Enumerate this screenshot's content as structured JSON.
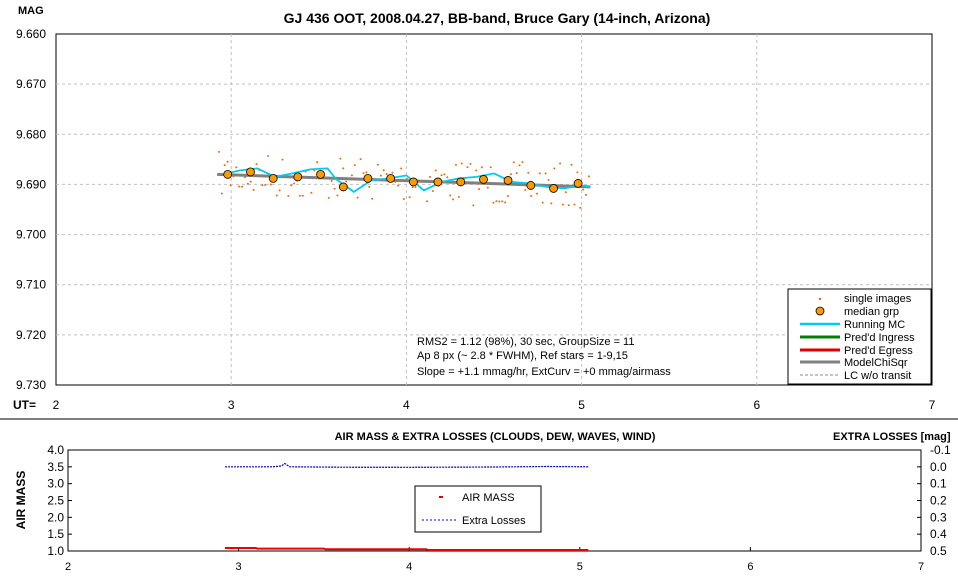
{
  "chart_data": [
    {
      "type": "scatter",
      "title": "GJ 436 OOT, 2008.04.27, BB-band, Bruce Gary (14-inch, Arizona)",
      "ylabel": "MAG",
      "xlabel": "UT=",
      "xlim": [
        2,
        7
      ],
      "ylim": [
        9.73,
        9.66
      ],
      "y_inverted": true,
      "x_ticks": [
        "2",
        "3",
        "4",
        "5",
        "6",
        "7"
      ],
      "y_ticks": [
        "9.660",
        "9.670",
        "9.680",
        "9.690",
        "9.700",
        "9.710",
        "9.720",
        "9.730"
      ],
      "grid": true,
      "legend_position": "bottom-right",
      "legend": [
        "single images",
        "median grp",
        "Running MC",
        "Pred'd Ingress",
        "Pred'd Egress",
        "ModelChiSqr",
        "LC w/o transit"
      ],
      "annotations": [
        "RMS2 = 1.12 (98%), 30 sec, GroupSize = 11",
        "Ap 8 px (~ 2.8 * FWHM), Ref stars = 1-9,15",
        "Slope = +1.1 mmag/hr, ExtCurv = +0 mmag/airmass"
      ],
      "series": [
        {
          "name": "median grp",
          "x": [
            2.98,
            3.11,
            3.24,
            3.38,
            3.51,
            3.64,
            3.78,
            3.91,
            4.04,
            4.18,
            4.31,
            4.44,
            4.58,
            4.71,
            4.84,
            4.98
          ],
          "y": [
            9.688,
            9.6875,
            9.6888,
            9.6885,
            9.688,
            9.6905,
            9.6888,
            9.6888,
            9.6895,
            9.6895,
            9.6895,
            9.689,
            9.6892,
            9.6902,
            9.6908,
            9.6898
          ]
        },
        {
          "name": "Running MC",
          "x": [
            2.95,
            3.05,
            3.15,
            3.25,
            3.35,
            3.45,
            3.55,
            3.6,
            3.7,
            3.8,
            3.9,
            4.0,
            4.1,
            4.2,
            4.3,
            4.4,
            4.5,
            4.6,
            4.7,
            4.8,
            4.9,
            5.0,
            5.05
          ],
          "y": [
            9.688,
            9.6872,
            9.6868,
            9.6885,
            9.6878,
            9.687,
            9.6868,
            9.689,
            9.6915,
            9.6892,
            9.6888,
            9.6882,
            9.6912,
            9.6895,
            9.6888,
            9.6885,
            9.6878,
            9.6895,
            9.6898,
            9.6905,
            9.6908,
            9.6902,
            9.6905
          ]
        },
        {
          "name": "ModelChiSqr",
          "x": [
            2.92,
            5.05
          ],
          "y": [
            9.688,
            9.6905
          ]
        }
      ]
    },
    {
      "type": "line",
      "title": "AIR MASS & EXTRA LOSSES (CLOUDS, DEW, WAVES, WIND)",
      "ylabel": "AIR MASS",
      "y2label": "EXTRA LOSSES [mag]",
      "xlim": [
        2,
        7
      ],
      "ylim": [
        1.0,
        4.0
      ],
      "y2lim": [
        0.5,
        -0.1
      ],
      "x_ticks": [
        "2",
        "3",
        "4",
        "5",
        "6",
        "7"
      ],
      "y_ticks": [
        "1.0",
        "1.5",
        "2.0",
        "2.5",
        "3.0",
        "3.5",
        "4.0"
      ],
      "y2_ticks": [
        "0.5",
        "0.4",
        "0.3",
        "0.2",
        "0.1",
        "0.0",
        "-0.1"
      ],
      "grid": false,
      "legend_position": "center",
      "legend": [
        "AIR MASS",
        "Extra Losses"
      ],
      "series": [
        {
          "name": "AIR MASS",
          "x": [
            2.92,
            3.1,
            3.11,
            3.5,
            3.51,
            4.1,
            4.11,
            5.05
          ],
          "y": [
            1.09,
            1.09,
            1.07,
            1.07,
            1.05,
            1.05,
            1.03,
            1.03
          ]
        },
        {
          "name": "Extra Losses",
          "x": [
            2.92,
            3.2,
            3.25,
            3.27,
            3.3,
            3.6,
            4.0,
            4.5,
            4.8,
            5.05
          ],
          "y": [
            0.0,
            0.0,
            -0.005,
            -0.02,
            0.0,
            0.002,
            0.003,
            0.001,
            -0.002,
            0.0
          ]
        }
      ]
    }
  ],
  "colors": {
    "single_images": "#ff6600",
    "median_grp_fill": "#ff9900",
    "running_mc": "#00ccee",
    "ingress": "#008000",
    "egress": "#dd0000",
    "model": "#808080",
    "lc_wo_transit": "#888888",
    "airmass": "#ee0000",
    "extra_losses": "#0000cc",
    "grid": "#c0c0c0"
  }
}
